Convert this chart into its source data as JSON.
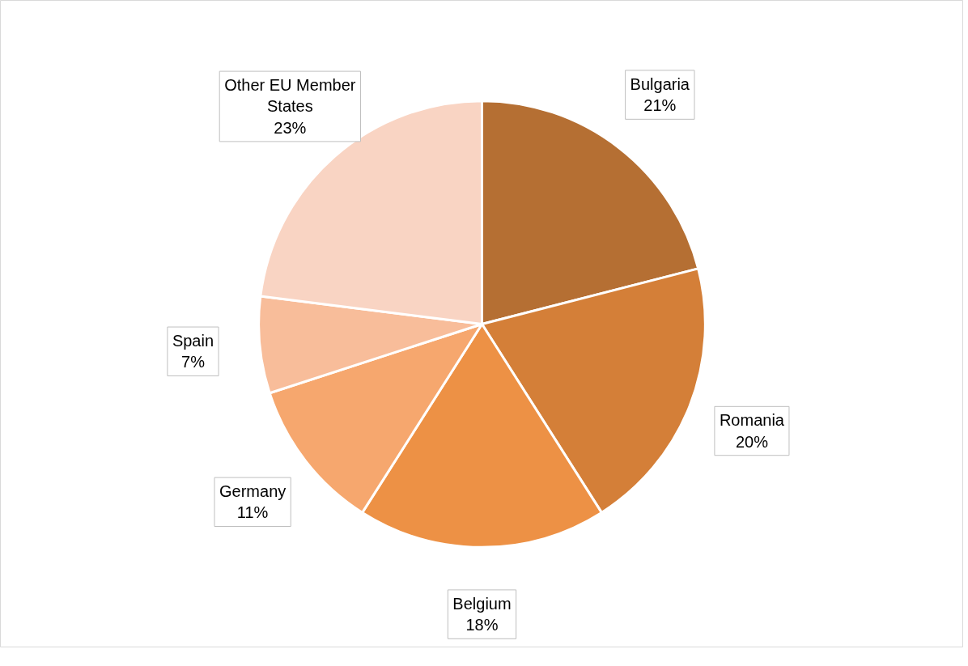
{
  "chart_data": {
    "type": "pie",
    "categories": [
      "Bulgaria",
      "Romania",
      "Belgium",
      "Germany",
      "Spain",
      "Other EU Member States"
    ],
    "values": [
      21,
      20,
      18,
      11,
      7,
      23
    ],
    "colors": [
      "#b56f33",
      "#d47f38",
      "#ed9145",
      "#f6a76e",
      "#f8bd9a",
      "#f9d4c3"
    ],
    "value_labels": [
      "21%",
      "20%",
      "18%",
      "11%",
      "7%",
      "23%"
    ]
  }
}
